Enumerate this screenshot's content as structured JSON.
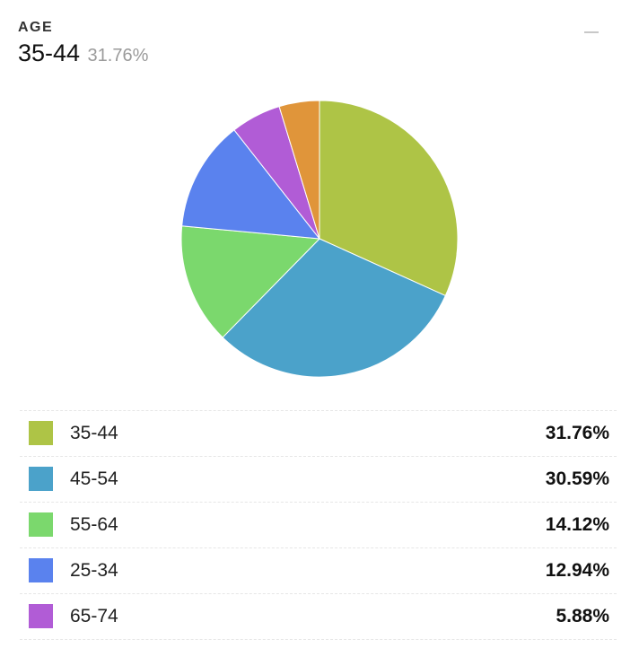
{
  "header": {
    "title": "AGE",
    "selected_label": "35-44",
    "selected_value": "31.76%"
  },
  "chart_data": {
    "type": "pie",
    "slices": [
      {
        "label": "35-44",
        "value": 31.76,
        "display": "31.76%",
        "color": "#aec446"
      },
      {
        "label": "45-54",
        "value": 30.59,
        "display": "30.59%",
        "color": "#4ba2ca"
      },
      {
        "label": "55-64",
        "value": 14.12,
        "display": "14.12%",
        "color": "#7bd86d"
      },
      {
        "label": "25-34",
        "value": 12.94,
        "display": "12.94%",
        "color": "#5a82ee"
      },
      {
        "label": "65-74",
        "value": 5.88,
        "display": "5.88%",
        "color": "#b15cd6"
      },
      {
        "label": "",
        "value": 4.71,
        "display": "",
        "color": "#e0953a"
      }
    ],
    "legend_placement": "bottom"
  },
  "legend": {
    "rows": [
      {
        "label": "35-44",
        "value": "31.76%",
        "color": "#aec446"
      },
      {
        "label": "45-54",
        "value": "30.59%",
        "color": "#4ba2ca"
      },
      {
        "label": "55-64",
        "value": "14.12%",
        "color": "#7bd86d"
      },
      {
        "label": "25-34",
        "value": "12.94%",
        "color": "#5a82ee"
      },
      {
        "label": "65-74",
        "value": "5.88%",
        "color": "#b15cd6"
      }
    ]
  },
  "icons": {
    "minimize": "minimize-icon"
  }
}
